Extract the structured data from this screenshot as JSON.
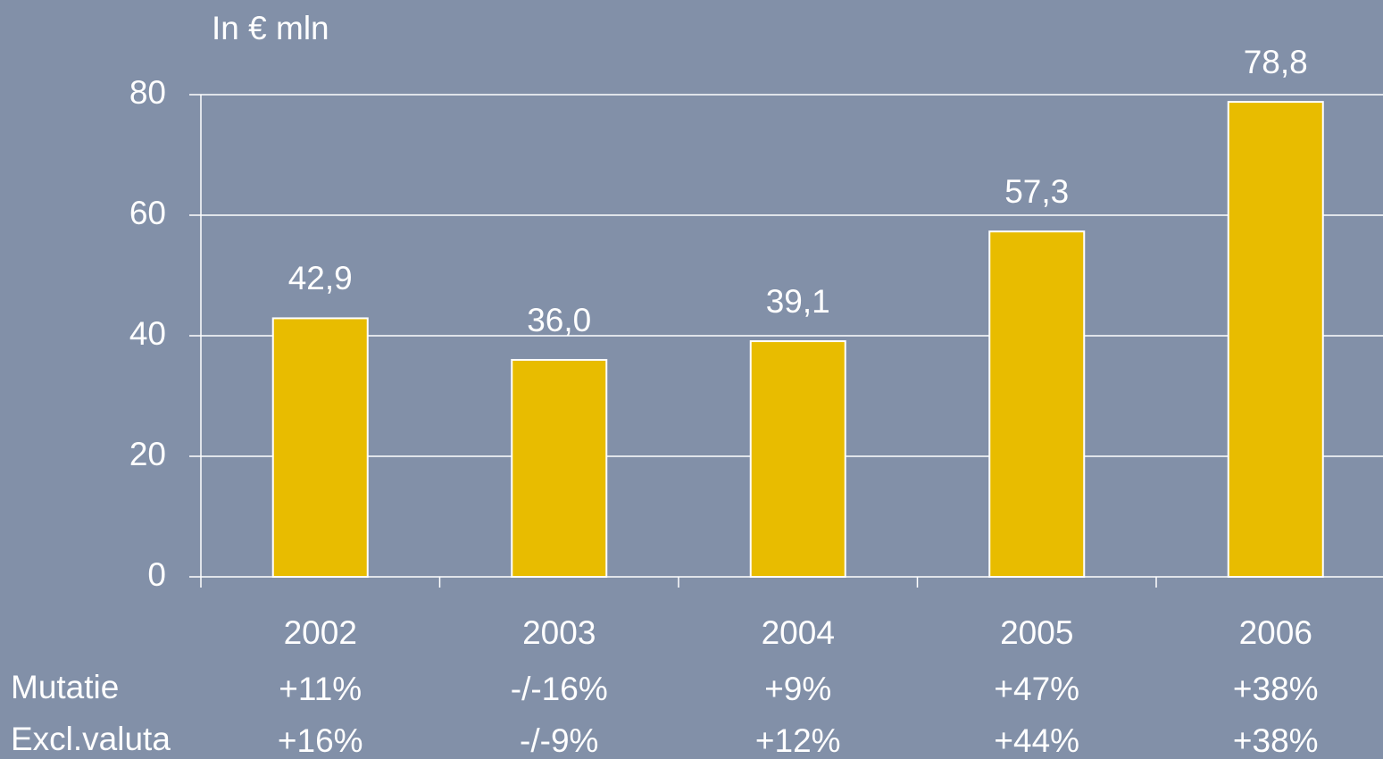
{
  "chart_data": {
    "type": "bar",
    "ylabel": "In € mln",
    "categories": [
      "2002",
      "2003",
      "2004",
      "2005",
      "2006"
    ],
    "values": [
      42.9,
      36.0,
      39.1,
      57.3,
      78.8
    ],
    "value_labels": [
      "42,9",
      "36,0",
      "39,1",
      "57,3",
      "78,8"
    ],
    "color": "#e8bc00",
    "ylim": [
      0,
      80
    ],
    "yticks": [
      0,
      20,
      40,
      60,
      80
    ],
    "grid": true,
    "rows": [
      {
        "label": "Mutatie",
        "values": [
          "+11%",
          "-/-16%",
          "+9%",
          "+47%",
          "+38%"
        ]
      },
      {
        "label": "Excl.valuta",
        "values": [
          "+16%",
          "-/-9%",
          "+12%",
          "+44%",
          "+38%"
        ]
      }
    ]
  }
}
